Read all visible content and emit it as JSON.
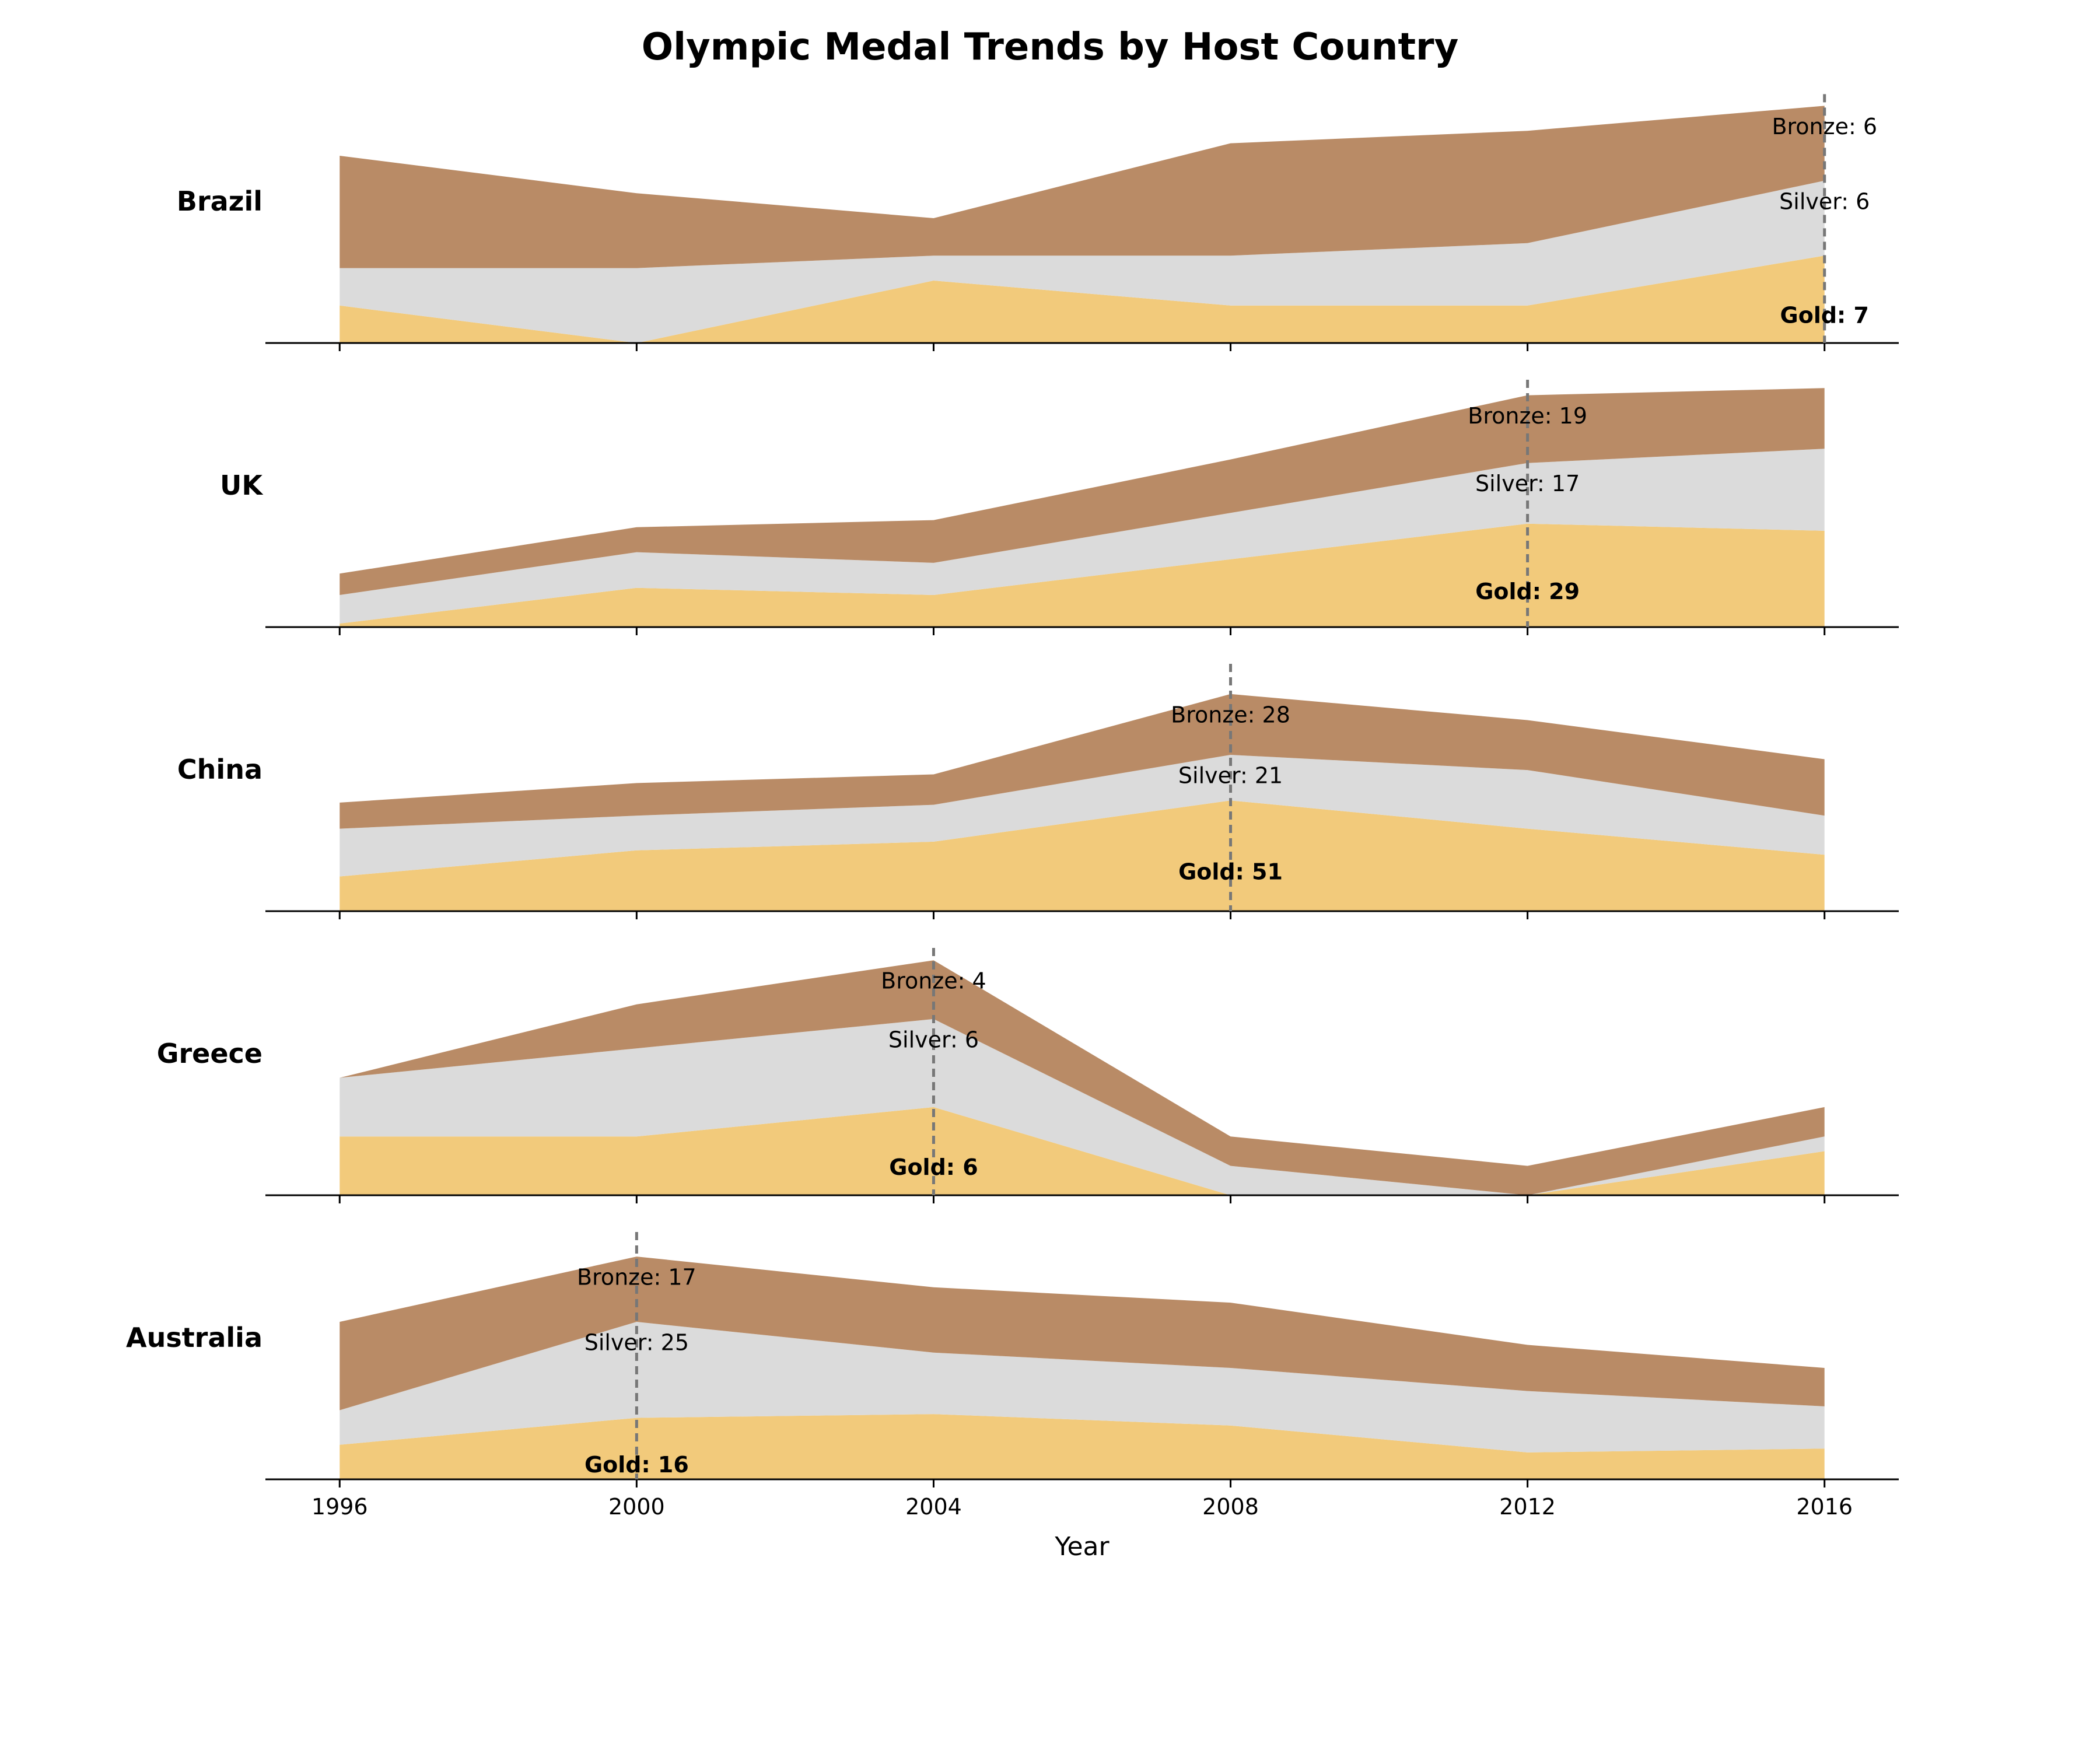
{
  "chart_data": {
    "type": "area",
    "title": "Olympic Medal Trends by Host Country",
    "xlabel": "Year",
    "x": [
      1996,
      2000,
      2004,
      2008,
      2012,
      2016
    ],
    "ylabel": "",
    "stack_order": [
      "Gold",
      "Silver",
      "Bronze"
    ],
    "colors": {
      "Gold": "#f2ca7b",
      "Silver": "#dbdbdb",
      "Bronze": "#b98b66"
    },
    "label_prefix": {
      "Gold": "Gold: ",
      "Silver": "Silver: ",
      "Bronze": "Bronze: "
    },
    "grid": false,
    "legend": "none",
    "panels": [
      {
        "country": "Brazil",
        "host_year": 2016,
        "ylim": [
          0,
          20
        ],
        "series": [
          {
            "name": "Gold",
            "values": [
              3,
              0,
              5,
              3,
              3,
              7
            ]
          },
          {
            "name": "Silver",
            "values": [
              3,
              6,
              2,
              4,
              5,
              6
            ]
          },
          {
            "name": "Bronze",
            "values": [
              9,
              6,
              3,
              9,
              9,
              6
            ]
          }
        ]
      },
      {
        "country": "UK",
        "host_year": 2012,
        "ylim": [
          0,
          70
        ],
        "series": [
          {
            "name": "Gold",
            "values": [
              1,
              11,
              9,
              19,
              29,
              27
            ]
          },
          {
            "name": "Silver",
            "values": [
              8,
              10,
              9,
              13,
              17,
              23
            ]
          },
          {
            "name": "Bronze",
            "values": [
              6,
              7,
              12,
              15,
              19,
              17
            ]
          }
        ]
      },
      {
        "country": "China",
        "host_year": 2008,
        "ylim": [
          0,
          115
        ],
        "series": [
          {
            "name": "Gold",
            "values": [
              16,
              28,
              32,
              51,
              38,
              26
            ]
          },
          {
            "name": "Silver",
            "values": [
              22,
              16,
              17,
              21,
              27,
              18
            ]
          },
          {
            "name": "Bronze",
            "values": [
              12,
              15,
              14,
              28,
              23,
              26
            ]
          }
        ]
      },
      {
        "country": "Greece",
        "host_year": 2004,
        "ylim": [
          0,
          17
        ],
        "series": [
          {
            "name": "Gold",
            "values": [
              4,
              4,
              6,
              0,
              0,
              3
            ]
          },
          {
            "name": "Silver",
            "values": [
              4,
              6,
              6,
              2,
              0,
              1
            ]
          },
          {
            "name": "Bronze",
            "values": [
              0,
              3,
              4,
              2,
              2,
              2
            ]
          }
        ]
      },
      {
        "country": "Australia",
        "host_year": 2000,
        "ylim": [
          0,
          65
        ],
        "series": [
          {
            "name": "Gold",
            "values": [
              9,
              16,
              17,
              14,
              7,
              8
            ]
          },
          {
            "name": "Silver",
            "values": [
              9,
              25,
              16,
              15,
              16,
              11
            ]
          },
          {
            "name": "Bronze",
            "values": [
              23,
              17,
              17,
              17,
              12,
              10
            ]
          }
        ]
      }
    ]
  }
}
